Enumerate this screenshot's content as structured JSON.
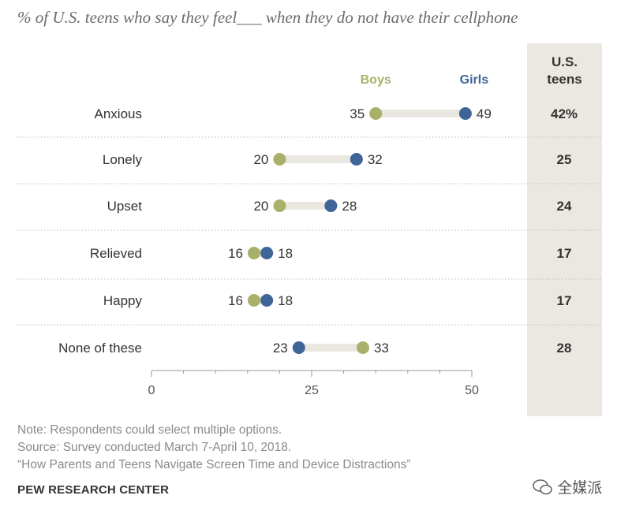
{
  "title": "% of U.S. teens who say they feel___ when they do not have their cellphone",
  "total_header": [
    "U.S.",
    "teens"
  ],
  "notes": [
    "Note: Respondents could select multiple options.",
    "Source: Survey conducted March 7-April 10, 2018.",
    "“How Parents and Teens Navigate Screen Time and Device Distractions”"
  ],
  "org": "PEW RESEARCH CENTER",
  "watermark": "全媒派",
  "colors": {
    "boys": "#a9b06a",
    "girls": "#3f6598",
    "connector": "#e9e7df",
    "column_bg": "#ebe8e1"
  },
  "chart_data": {
    "type": "dot",
    "categories": [
      "Anxious",
      "Lonely",
      "Upset",
      "Relieved",
      "Happy",
      "None of these"
    ],
    "series": [
      {
        "name": "Boys",
        "values": [
          35,
          20,
          20,
          16,
          16,
          33
        ]
      },
      {
        "name": "Girls",
        "values": [
          49,
          32,
          28,
          18,
          18,
          23
        ]
      }
    ],
    "totals": [
      "42%",
      "25",
      "24",
      "17",
      "17",
      "28"
    ],
    "xlim": [
      0,
      50
    ],
    "xticks": [
      0,
      25,
      50
    ]
  }
}
